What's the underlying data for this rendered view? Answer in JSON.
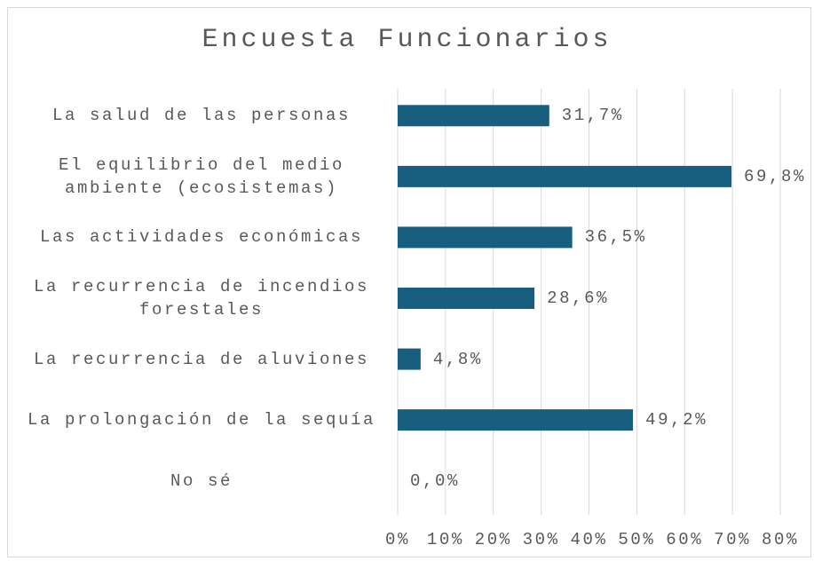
{
  "chart_data": {
    "type": "bar",
    "orientation": "horizontal",
    "title": "Encuesta Funcionarios",
    "categories": [
      "La salud de las personas",
      "El equilibrio del medio ambiente (ecosistemas)",
      "Las actividades económicas",
      "La recurrencia de incendios forestales",
      "La recurrencia de aluviones",
      "La prolongación de la sequía",
      "No sé"
    ],
    "values": [
      31.7,
      69.8,
      36.5,
      28.6,
      4.8,
      49.2,
      0.0
    ],
    "value_labels": [
      "31,7%",
      "69,8%",
      "36,5%",
      "28,6%",
      "4,8%",
      "49,2%",
      "0,0%"
    ],
    "color": "#175e7f",
    "xlim": [
      0,
      80
    ],
    "xticks": [
      {
        "value": 0,
        "label": "0%"
      },
      {
        "value": 10,
        "label": "10%"
      },
      {
        "value": 20,
        "label": "20%"
      },
      {
        "value": 30,
        "label": "30%"
      },
      {
        "value": 40,
        "label": "40%"
      },
      {
        "value": 50,
        "label": "50%"
      },
      {
        "value": 60,
        "label": "60%"
      },
      {
        "value": 70,
        "label": "70%"
      },
      {
        "value": 80,
        "label": "80%"
      }
    ],
    "grid": true
  }
}
